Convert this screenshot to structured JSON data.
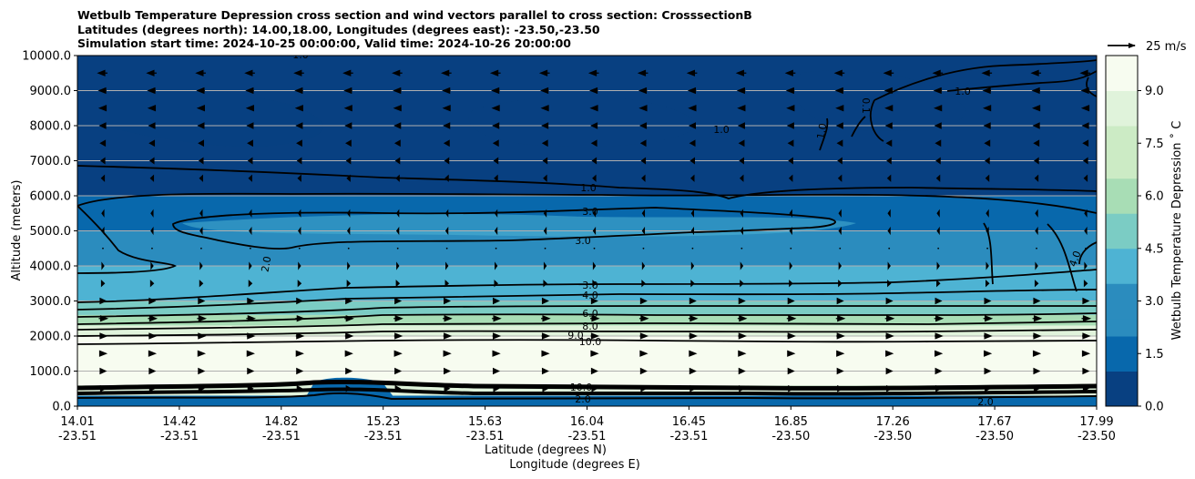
{
  "chart_data": {
    "type": "contour",
    "title_lines": [
      "Wetbulb Temperature Depression cross section and wind vectors parallel to cross section: CrosssectionB",
      "Latitudes (degrees north): 14.00,18.00, Longitudes (degrees east): -23.50,-23.50",
      "Simulation start time: 2024-10-25 00:00:00, Valid time: 2024-10-26 20:00:00"
    ],
    "ylabel": "Altitude (meters)",
    "xlabel_lat": "Latitude (degrees N)",
    "xlabel_lon": "Longitude (degrees E)",
    "ylim": [
      0,
      10000
    ],
    "y_ticks": [
      {
        "v": 0,
        "label": "0.0"
      },
      {
        "v": 1000,
        "label": "1000.0"
      },
      {
        "v": 2000,
        "label": "2000.0"
      },
      {
        "v": 3000,
        "label": "3000.0"
      },
      {
        "v": 4000,
        "label": "4000.0"
      },
      {
        "v": 5000,
        "label": "5000.0"
      },
      {
        "v": 6000,
        "label": "6000.0"
      },
      {
        "v": 7000,
        "label": "7000.0"
      },
      {
        "v": 8000,
        "label": "8000.0"
      },
      {
        "v": 9000,
        "label": "9000.0"
      },
      {
        "v": 10000,
        "label": "10000.0"
      }
    ],
    "x_ticks": [
      {
        "lat": "14.01",
        "lon": "-23.51"
      },
      {
        "lat": "14.42",
        "lon": "-23.51"
      },
      {
        "lat": "14.82",
        "lon": "-23.51"
      },
      {
        "lat": "15.23",
        "lon": "-23.51"
      },
      {
        "lat": "15.63",
        "lon": "-23.51"
      },
      {
        "lat": "16.04",
        "lon": "-23.51"
      },
      {
        "lat": "16.45",
        "lon": "-23.51"
      },
      {
        "lat": "16.85",
        "lon": "-23.50"
      },
      {
        "lat": "17.26",
        "lon": "-23.50"
      },
      {
        "lat": "17.67",
        "lon": "-23.50"
      },
      {
        "lat": "17.99",
        "lon": "-23.50"
      }
    ],
    "grid": "horizontal",
    "colorbar": {
      "label": "Wetbulb Temperature Depression ˚ C",
      "min": 0,
      "max": 10,
      "ticks": [
        "0.0",
        "1.5",
        "3.0",
        "4.5",
        "6.0",
        "7.5",
        "9.0"
      ],
      "colors": [
        "#084081",
        "#0868ac",
        "#2b8cbe",
        "#4eb3d3",
        "#7bccc4",
        "#a8ddb5",
        "#ccebc5",
        "#e0f3db",
        "#f7fcf0"
      ]
    },
    "wind_key": {
      "label": "25 m/s",
      "speed": 25
    },
    "contour_levels_labeled": [
      "1.0",
      "2.0",
      "3.0",
      "4.0",
      "6.0",
      "8.0",
      "9.0",
      "10.0"
    ],
    "contour_labels_text": [
      "1.0",
      "1.0",
      "1.0",
      "0.1",
      "1.0",
      "1.0",
      "3.0",
      "3.0",
      "2.0",
      "4.0",
      "3.0",
      "4.0",
      "6.0",
      "8.0",
      "9.0",
      "10.0",
      "10.0",
      "2.0",
      "2.0"
    ],
    "layers_by_altitude": [
      {
        "top_m": 300,
        "value": 1.5
      },
      {
        "top_m": 600,
        "value": 8
      },
      {
        "top_m": 1750,
        "value": 10
      },
      {
        "top_m": 2000,
        "value": 9
      },
      {
        "top_m": 2300,
        "value": 8
      },
      {
        "top_m": 2600,
        "value": 6.5
      },
      {
        "top_m": 3000,
        "value": 4.5
      },
      {
        "top_m": 4000,
        "value": 3.5
      },
      {
        "top_m": 5000,
        "value": 3
      },
      {
        "top_m": 6000,
        "value": 2
      },
      {
        "top_m": 7000,
        "value": 1
      },
      {
        "top_m": 10000,
        "value": 0.5
      }
    ]
  }
}
